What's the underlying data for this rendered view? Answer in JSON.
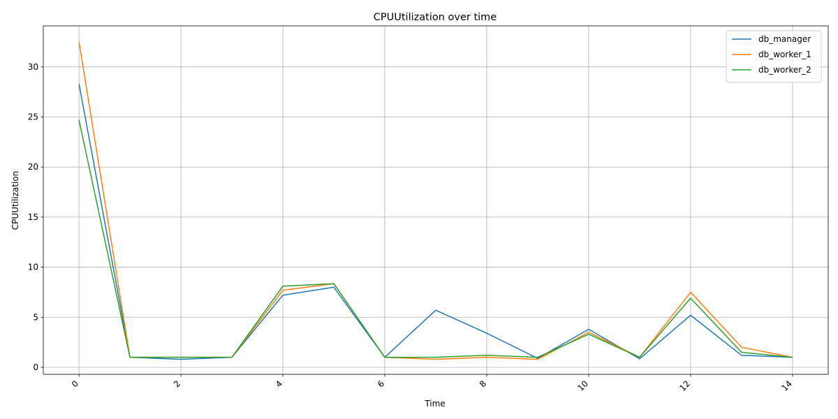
{
  "chart_data": {
    "type": "line",
    "title": "CPUUtilization over time",
    "xlabel": "Time",
    "ylabel": "CPUUtilization",
    "xlim": [
      -0.7,
      14.7
    ],
    "ylim": [
      -0.7,
      34.1
    ],
    "xticks": [
      0,
      2,
      4,
      6,
      8,
      10,
      12,
      14
    ],
    "xtick_labels": [
      "0",
      "2",
      "4",
      "6",
      "8",
      "10",
      "12",
      "14"
    ],
    "yticks": [
      0,
      5,
      10,
      15,
      20,
      25,
      30
    ],
    "ytick_labels": [
      "0",
      "5",
      "10",
      "15",
      "20",
      "25",
      "30"
    ],
    "grid": true,
    "legend_position": "top-right",
    "x": [
      0,
      1,
      2,
      3,
      4,
      5,
      6,
      7,
      8,
      9,
      10,
      11,
      12,
      13,
      14
    ],
    "series": [
      {
        "name": "db_manager",
        "color": "#1f77b4",
        "values": [
          28.3,
          1.0,
          0.8,
          1.0,
          7.2,
          8.0,
          1.0,
          5.7,
          3.4,
          0.9,
          3.8,
          0.85,
          5.2,
          1.2,
          1.0
        ]
      },
      {
        "name": "db_worker_1",
        "color": "#ff7f0e",
        "values": [
          32.5,
          1.0,
          1.0,
          1.0,
          7.7,
          8.35,
          1.0,
          0.8,
          1.0,
          0.8,
          3.5,
          1.0,
          7.5,
          2.0,
          1.0
        ]
      },
      {
        "name": "db_worker_2",
        "color": "#2ca02c",
        "values": [
          24.7,
          1.0,
          1.0,
          1.0,
          8.1,
          8.35,
          1.0,
          1.0,
          1.2,
          1.0,
          3.3,
          1.0,
          6.9,
          1.5,
          1.0
        ]
      }
    ]
  }
}
